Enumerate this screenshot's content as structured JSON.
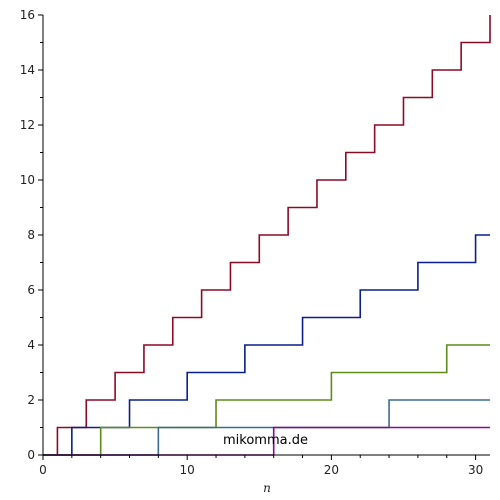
{
  "chart_data": {
    "type": "line",
    "title": "",
    "xlabel": "n",
    "ylabel": "",
    "xlim": [
      0,
      31
    ],
    "ylim": [
      0,
      16
    ],
    "x_ticks": [
      0,
      10,
      20,
      30
    ],
    "y_ticks": [
      0,
      2,
      4,
      6,
      8,
      10,
      12,
      14,
      16
    ],
    "grid": false,
    "step": true,
    "series": [
      {
        "color": "#8b0a26",
        "x": [
          0,
          1,
          3,
          5,
          7,
          9,
          11,
          13,
          15,
          17,
          19,
          21,
          23,
          25,
          27,
          29,
          31
        ],
        "y": [
          0,
          1,
          2,
          3,
          4,
          5,
          6,
          7,
          8,
          9,
          10,
          11,
          12,
          13,
          14,
          15,
          16
        ]
      },
      {
        "color": "#0a1f8b",
        "x": [
          0,
          2,
          6,
          10,
          14,
          18,
          22,
          26,
          30,
          31
        ],
        "y": [
          0,
          1,
          2,
          3,
          4,
          5,
          6,
          7,
          8,
          8
        ]
      },
      {
        "color": "#5e8b1a",
        "x": [
          0,
          4,
          12,
          20,
          28,
          31
        ],
        "y": [
          0,
          1,
          2,
          3,
          4,
          4
        ]
      },
      {
        "color": "#3f6a8f",
        "x": [
          0,
          8,
          24,
          31
        ],
        "y": [
          0,
          1,
          2,
          2
        ]
      },
      {
        "color": "#8b0a8b",
        "x": [
          0,
          16,
          31
        ],
        "y": [
          0,
          1,
          1
        ]
      }
    ]
  },
  "watermark": "mikomma.de"
}
